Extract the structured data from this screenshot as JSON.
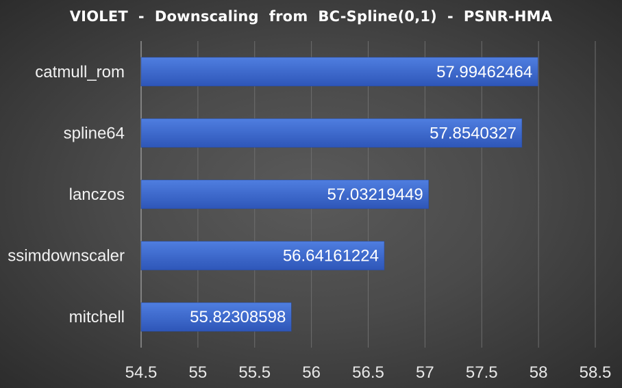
{
  "chart_data": {
    "type": "bar",
    "orientation": "horizontal",
    "title": "VIOLET  -  Downscaling  from  BC-Spline(0,1)  -  PSNR-HMA",
    "categories": [
      "catmull_rom",
      "spline64",
      "lanczos",
      "ssimdownscaler",
      "mitchell"
    ],
    "values": [
      57.99462464,
      57.8540327,
      57.03219449,
      56.64161224,
      55.82308598
    ],
    "value_labels": [
      "57.99462464",
      "57.8540327",
      "57.03219449",
      "56.64161224",
      "55.82308598"
    ],
    "xlim": [
      54.5,
      58.5
    ],
    "x_ticks": [
      "54.5",
      "55",
      "55.5",
      "56",
      "56.5",
      "57",
      "57.5",
      "58",
      "58.5"
    ],
    "xlabel": "",
    "ylabel": "",
    "grid": true,
    "legend": "none",
    "colors": {
      "bar_top": "#4f7ee0",
      "bar_bottom": "#2e56b8",
      "grid": "#6e6e6e",
      "axis": "#bdbdbd"
    }
  }
}
